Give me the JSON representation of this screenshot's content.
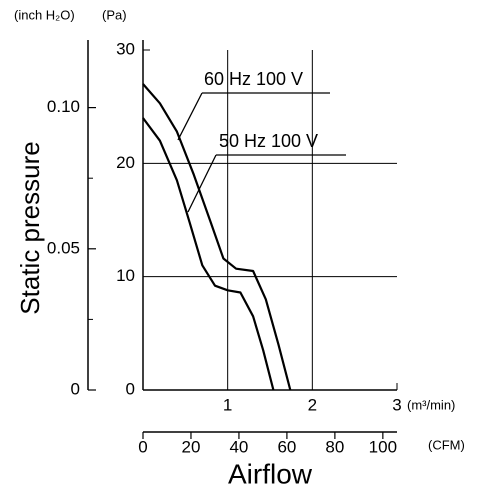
{
  "chart_data": {
    "type": "line",
    "y_unit": "(Pa)",
    "y2_unit": "(inch H₂O)",
    "x_unit": "(m³/min)",
    "x2_unit": "(CFM)",
    "ylabel": "Static pressure",
    "xlabel": "Airflow",
    "xlim": [
      0,
      3
    ],
    "xticks": [
      1,
      2,
      3
    ],
    "ylim": [
      0,
      30
    ],
    "yticks": [
      0,
      10,
      20,
      30
    ],
    "y2lim": [
      0,
      0.1204
    ],
    "y2ticks": [
      0,
      {
        "value": 0.05,
        "label": "0.05"
      },
      {
        "value": 0.1,
        "label": "0.10"
      }
    ],
    "y2_minor_ticks": [
      0.025,
      0.075
    ],
    "x2lim": [
      0,
      105.9
    ],
    "x2ticks": [
      0,
      20,
      40,
      60,
      80,
      100
    ],
    "grid": true,
    "series": [
      {
        "name": "60 Hz 100 V",
        "color": "#000000",
        "x": [
          0,
          0.2,
          0.4,
          0.6,
          0.8,
          0.95,
          1.1,
          1.3,
          1.45,
          1.6,
          1.74
        ],
        "values": [
          27,
          25.3,
          22.8,
          19,
          14.8,
          11.6,
          10.7,
          10.5,
          8,
          4,
          0
        ]
      },
      {
        "name": "50 Hz 100 V",
        "color": "#000000",
        "x": [
          0,
          0.2,
          0.4,
          0.55,
          0.7,
          0.85,
          1.0,
          1.15,
          1.3,
          1.42,
          1.54
        ],
        "values": [
          24,
          22,
          18.5,
          14.8,
          11,
          9.2,
          8.8,
          8.6,
          6.5,
          3.5,
          0
        ]
      }
    ]
  }
}
